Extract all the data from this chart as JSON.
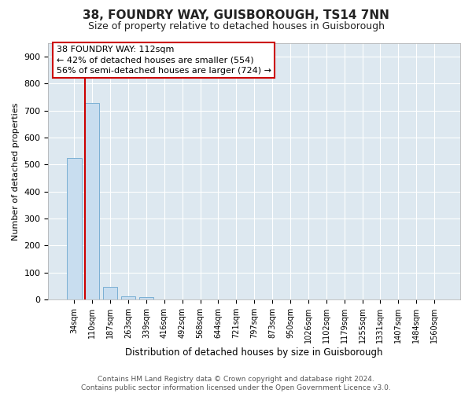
{
  "title": "38, FOUNDRY WAY, GUISBOROUGH, TS14 7NN",
  "subtitle": "Size of property relative to detached houses in Guisborough",
  "xlabel": "Distribution of detached houses by size in Guisborough",
  "ylabel": "Number of detached properties",
  "bar_labels": [
    "34sqm",
    "110sqm",
    "187sqm",
    "263sqm",
    "339sqm",
    "416sqm",
    "492sqm",
    "568sqm",
    "644sqm",
    "721sqm",
    "797sqm",
    "873sqm",
    "950sqm",
    "1026sqm",
    "1102sqm",
    "1179sqm",
    "1255sqm",
    "1331sqm",
    "1407sqm",
    "1484sqm",
    "1560sqm"
  ],
  "bar_values": [
    525,
    728,
    47,
    12,
    8,
    0,
    0,
    0,
    0,
    0,
    0,
    0,
    0,
    0,
    0,
    0,
    0,
    0,
    0,
    0,
    0
  ],
  "bar_color": "#c8ddef",
  "bar_edge_color": "#7aafd4",
  "annotation_text": "38 FOUNDRY WAY: 112sqm\n← 42% of detached houses are smaller (554)\n56% of semi-detached houses are larger (724) →",
  "annotation_box_facecolor": "#ffffff",
  "annotation_box_edgecolor": "#cc0000",
  "vline_color": "#cc0000",
  "vline_x": 0.6,
  "ylim_max": 950,
  "footnote": "Contains HM Land Registry data © Crown copyright and database right 2024.\nContains public sector information licensed under the Open Government Licence v3.0.",
  "bg_color": "#ffffff",
  "plot_bg_color": "#dde8f0",
  "grid_color": "#ffffff",
  "title_fontsize": 11,
  "subtitle_fontsize": 9,
  "ylabel_fontsize": 8,
  "xlabel_fontsize": 8.5,
  "tick_fontsize": 7,
  "annotation_fontsize": 8,
  "footnote_fontsize": 6.5
}
